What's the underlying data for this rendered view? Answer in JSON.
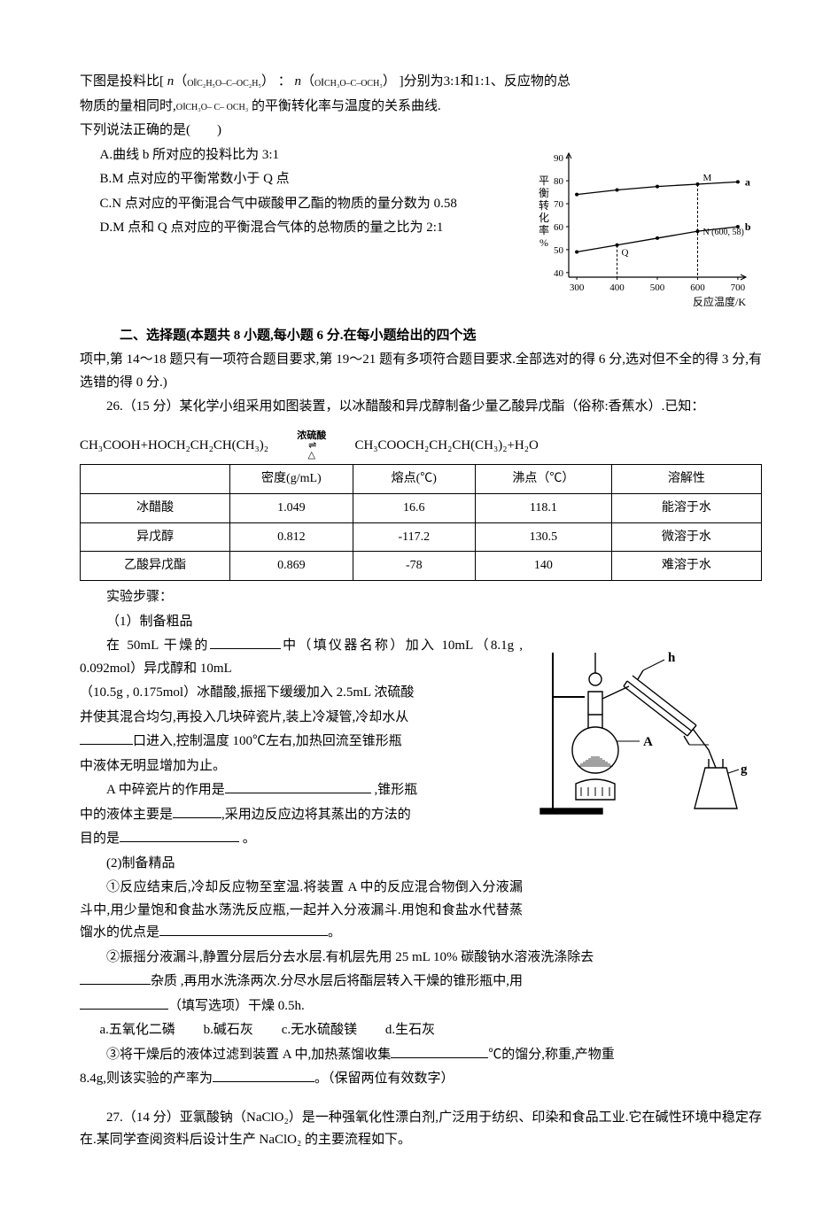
{
  "q13": {
    "line1_pre": "下图是投料比[ ",
    "ratio_n": "n",
    "r1_inner": "C₂H₅O–C–OC₂H₅",
    "colon": " ：",
    "r2_inner": "CH₃O–C–OCH₃",
    "line1_post": " ]分别为3:1和1:1、反应物的总",
    "line2_pre": "物质的量相同时,",
    "line2_compound": "CH₃O– C– OCH₃",
    "line2_post": " 的平衡转化率与温度的关系曲线.",
    "prompt": "下列说法正确的是(　　)",
    "optA": "A.曲线 b 所对应的投料比为 3:1",
    "optB": "B.M 点对应的平衡常数小于 Q 点",
    "optC": "C.N 点对应的平衡混合气中碳酸甲乙酯的物质的量分数为 0.58",
    "optD": "D.M 点和 Q 点对应的平衡混合气体的总物质的量之比为 2:1",
    "chart": {
      "type": "line",
      "xlabel": "反应温度/K",
      "ylabel": "平衡转化率%",
      "xlim": [
        280,
        720
      ],
      "xtick_start": 300,
      "xtick_step": 100,
      "xtick_end": 700,
      "ylim": [
        38,
        92
      ],
      "yticks": [
        40,
        50,
        60,
        70,
        80,
        90
      ],
      "series_a": {
        "label": "a",
        "color": "#000000",
        "points": [
          [
            300,
            74
          ],
          [
            400,
            76
          ],
          [
            500,
            77.5
          ],
          [
            600,
            78.5
          ],
          [
            700,
            79.5
          ]
        ],
        "M_x": 600
      },
      "series_b": {
        "label": "b",
        "color": "#000000",
        "points": [
          [
            300,
            49
          ],
          [
            400,
            52
          ],
          [
            500,
            55
          ],
          [
            600,
            58
          ],
          [
            700,
            60
          ]
        ],
        "Q_x": 400,
        "N_label": "N (600, 58)"
      },
      "M_label": "M",
      "Q_label": "Q",
      "axis_color": "#000000",
      "tick_fontsize": 11,
      "label_fontsize": 12
    }
  },
  "section2": {
    "heading": "二、选择题(本题共 8 小题,每小题 6 分.在每小题给出的四个选",
    "heading2": "项中,第 14～18 题只有一项符合题目要求,第 19～21 题有多项符合题目要求.全部选对的得 6 分,选对但不全的得 3 分,有选错的得 0 分.)"
  },
  "q26": {
    "stem1": "26.（15 分）某化学小组采用如图装置，以冰醋酸和异戊醇制备少量乙酸异戊酯（俗称:香蕉水）.已知：",
    "eq_left": "CH₃COOH+HOCH₂CH₂CH(CH₃)₂",
    "eq_top": "浓硫酸",
    "eq_bot": "△",
    "eq_right": "CH₃COOCH₂CH₂CH(CH₃)₂+H₂O",
    "table": {
      "columns": [
        "",
        "密度(g/mL)",
        "熔点(℃)",
        "沸点（℃）",
        "溶解性"
      ],
      "rows": [
        [
          "冰醋酸",
          "1.049",
          "16.6",
          "118.1",
          "能溶于水"
        ],
        [
          "异戊醇",
          "0.812",
          "-117.2",
          "130.5",
          "微溶于水"
        ],
        [
          "乙酸异戊酯",
          "0.869",
          "-78",
          "140",
          "难溶于水"
        ]
      ],
      "col_widths": [
        "22%",
        "18%",
        "18%",
        "20%",
        "22%"
      ]
    },
    "steps_label": "实验步骤：",
    "s1_title": "（1）制备粗品",
    "s1_l1_a": "在 50mL 干燥的",
    "s1_l1_b": "中（填仪器名称）加入 10mL（8.1g , 0.092mol）异戊醇和 10mL",
    "s1_l2": "（10.5g , 0.175mol）冰醋酸,振摇下缓缓加入 2.5mL 浓硫酸",
    "s1_l3": "并使其混合均匀,再投入几块碎瓷片,装上冷凝管,冷却水从",
    "s1_l4_b": "口进入,控制温度 100℃左右,加热回流至锥形瓶",
    "s1_l5": "中液体无明显增加为止。",
    "s1_l6_a": "A 中碎瓷片的作用是",
    "s1_l6_b": " ,锥形瓶",
    "s1_l7_a": "中的液体主要是",
    "s1_l7_b": ",采用边反应边将其蒸出的方法的",
    "s1_l8_a": "目的是",
    "s1_l8_b": " 。",
    "s2_title": "(2)制备精品",
    "s2_p1": "①反应结束后,冷却反应物至室温.将装置 A 中的反应混合物倒入分液漏斗中,用少量饱和食盐水荡洗反应瓶,一起并入分液漏斗.用饱和食盐水代替蒸馏水的优点是",
    "s2_p1_end": "。",
    "s2_p2_a": "②振摇分液漏斗,静置分层后分去水层.有机层先用 25 mL 10%  碳酸钠水溶液洗涤除去",
    "s2_p2_b": "杂质 ,再用水洗涤两次.分尽水层后将酯层转入干燥的锥形瓶中,用",
    "s2_p2_c": "（填写选项）干燥 0.5h.",
    "s2_choices": {
      "a": "a.五氧化二磷",
      "b": "b.碱石灰",
      "c": "c.无水硫酸镁",
      "d": "d.生石灰"
    },
    "s2_p3_a": "③将干燥后的液体过滤到装置 A 中,加热蒸馏收集",
    "s2_p3_b": "℃的馏分,称重,产物重",
    "s2_p3_c": "8.4g,则该实验的产率为",
    "s2_p3_d": "。（保留两位有效数字）",
    "apparatus_labels": {
      "h": "h",
      "A": "A",
      "g": "g"
    }
  },
  "q27": {
    "stem": "27.（14 分）亚氯酸钠（NaClO₂）是一种强氧化性漂白剂,广泛用于纺织、印染和食品工业.它在碱性环境中稳定存在.某同学查阅资料后设计生产 NaClO₂ 的主要流程如下。"
  }
}
